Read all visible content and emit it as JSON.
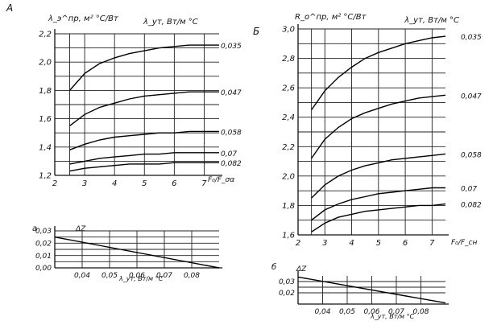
{
  "figure_labels": {
    "A": "А",
    "B": "Б",
    "a": "а",
    "b": "б"
  },
  "chart_data": [
    {
      "id": "A-main",
      "type": "line",
      "ylabel": "λ_э^пр, м² °С/Вт",
      "xlabel": "F₀/F_σα",
      "series_header": "λ_ут, Вт/м °С",
      "xlim": [
        2,
        7.5
      ],
      "ylim": [
        1.2,
        2.2
      ],
      "x_ticks": [
        "2",
        "3",
        "4",
        "5",
        "6",
        "7"
      ],
      "y_ticks": [
        "1,2",
        "1,4",
        "1,6",
        "1,8",
        "2,0",
        "2,2"
      ],
      "grid": true,
      "series": [
        {
          "name": "0,035",
          "x": [
            2.5,
            3,
            3.5,
            4,
            4.5,
            5,
            5.5,
            6,
            6.5,
            7,
            7.5
          ],
          "y": [
            1.8,
            1.92,
            1.99,
            2.03,
            2.06,
            2.08,
            2.1,
            2.11,
            2.12,
            2.12,
            2.12
          ]
        },
        {
          "name": "0,047",
          "x": [
            2.5,
            3,
            3.5,
            4,
            4.5,
            5,
            5.5,
            6,
            6.5,
            7,
            7.5
          ],
          "y": [
            1.55,
            1.63,
            1.68,
            1.71,
            1.74,
            1.76,
            1.77,
            1.78,
            1.79,
            1.79,
            1.79
          ]
        },
        {
          "name": "0,058",
          "x": [
            2.5,
            3,
            3.5,
            4,
            4.5,
            5,
            5.5,
            6,
            6.5,
            7,
            7.5
          ],
          "y": [
            1.38,
            1.42,
            1.45,
            1.47,
            1.48,
            1.49,
            1.5,
            1.5,
            1.51,
            1.51,
            1.51
          ]
        },
        {
          "name": "0,07",
          "x": [
            2.5,
            3,
            3.5,
            4,
            4.5,
            5,
            5.5,
            6,
            6.5,
            7,
            7.5
          ],
          "y": [
            1.28,
            1.3,
            1.32,
            1.33,
            1.34,
            1.35,
            1.35,
            1.36,
            1.36,
            1.36,
            1.36
          ]
        },
        {
          "name": "0,082",
          "x": [
            2.5,
            3,
            3.5,
            4,
            4.5,
            5,
            5.5,
            6,
            6.5,
            7,
            7.5
          ],
          "y": [
            1.23,
            1.25,
            1.26,
            1.27,
            1.28,
            1.28,
            1.28,
            1.29,
            1.29,
            1.29,
            1.29
          ]
        }
      ]
    },
    {
      "id": "A-small",
      "type": "line",
      "ylabel": "ΔZ",
      "xlabel": "λ_ут, Вт/м °С",
      "xlim": [
        0.03,
        0.09
      ],
      "ylim": [
        0,
        0.03
      ],
      "x_ticks": [
        "0,04",
        "0,05",
        "0,06",
        "0,07",
        "0,08"
      ],
      "y_ticks": [
        "0,00",
        "0,01",
        "0,02",
        "0,03"
      ],
      "grid": true,
      "series": [
        {
          "name": "",
          "x": [
            0.03,
            0.09
          ],
          "y": [
            0.025,
            0.0
          ]
        }
      ]
    },
    {
      "id": "B-main",
      "type": "line",
      "ylabel": "R_о^пр, м² °С/Вт",
      "xlabel": "F₀/F_сн",
      "series_header": "λ_ут, Вт/м °С",
      "xlim": [
        2,
        7.5
      ],
      "ylim": [
        1.6,
        3.0
      ],
      "x_ticks": [
        "2",
        "3",
        "4",
        "5",
        "6",
        "7"
      ],
      "y_ticks": [
        "1,6",
        "1,8",
        "2,0",
        "2,2",
        "2,4",
        "2,6",
        "2,8",
        "3,0"
      ],
      "grid": true,
      "series": [
        {
          "name": "0,035",
          "x": [
            2.5,
            3,
            3.5,
            4,
            4.5,
            5,
            5.5,
            6,
            6.5,
            7,
            7.5
          ],
          "y": [
            2.45,
            2.58,
            2.67,
            2.74,
            2.8,
            2.84,
            2.87,
            2.9,
            2.92,
            2.94,
            2.95
          ]
        },
        {
          "name": "0,047",
          "x": [
            2.5,
            3,
            3.5,
            4,
            4.5,
            5,
            5.5,
            6,
            6.5,
            7,
            7.5
          ],
          "y": [
            2.12,
            2.25,
            2.33,
            2.39,
            2.43,
            2.46,
            2.49,
            2.51,
            2.53,
            2.54,
            2.55
          ]
        },
        {
          "name": "0,058",
          "x": [
            2.5,
            3,
            3.5,
            4,
            4.5,
            5,
            5.5,
            6,
            6.5,
            7,
            7.5
          ],
          "y": [
            1.85,
            1.94,
            2.0,
            2.04,
            2.07,
            2.09,
            2.11,
            2.12,
            2.13,
            2.14,
            2.15
          ]
        },
        {
          "name": "0,07",
          "x": [
            2.5,
            3,
            3.5,
            4,
            4.5,
            5,
            5.5,
            6,
            6.5,
            7,
            7.5
          ],
          "y": [
            1.7,
            1.77,
            1.81,
            1.84,
            1.86,
            1.88,
            1.89,
            1.9,
            1.91,
            1.92,
            1.92
          ]
        },
        {
          "name": "0,082",
          "x": [
            2.5,
            3,
            3.5,
            4,
            4.5,
            5,
            5.5,
            6,
            6.5,
            7,
            7.5
          ],
          "y": [
            1.62,
            1.68,
            1.72,
            1.74,
            1.76,
            1.77,
            1.78,
            1.79,
            1.8,
            1.8,
            1.81
          ]
        }
      ]
    },
    {
      "id": "B-small",
      "type": "line",
      "ylabel": "ΔZ",
      "xlabel": "λ_ут, Вт/м °С",
      "xlim": [
        0.03,
        0.09
      ],
      "ylim": [
        0.01,
        0.035
      ],
      "x_ticks": [
        "0,04",
        "0,05",
        "0,06",
        "0,07",
        "0,08"
      ],
      "y_ticks": [
        "0,02",
        "0,03"
      ],
      "grid": true,
      "series": [
        {
          "name": "",
          "x": [
            0.03,
            0.09
          ],
          "y": [
            0.034,
            0.011
          ]
        }
      ]
    }
  ]
}
